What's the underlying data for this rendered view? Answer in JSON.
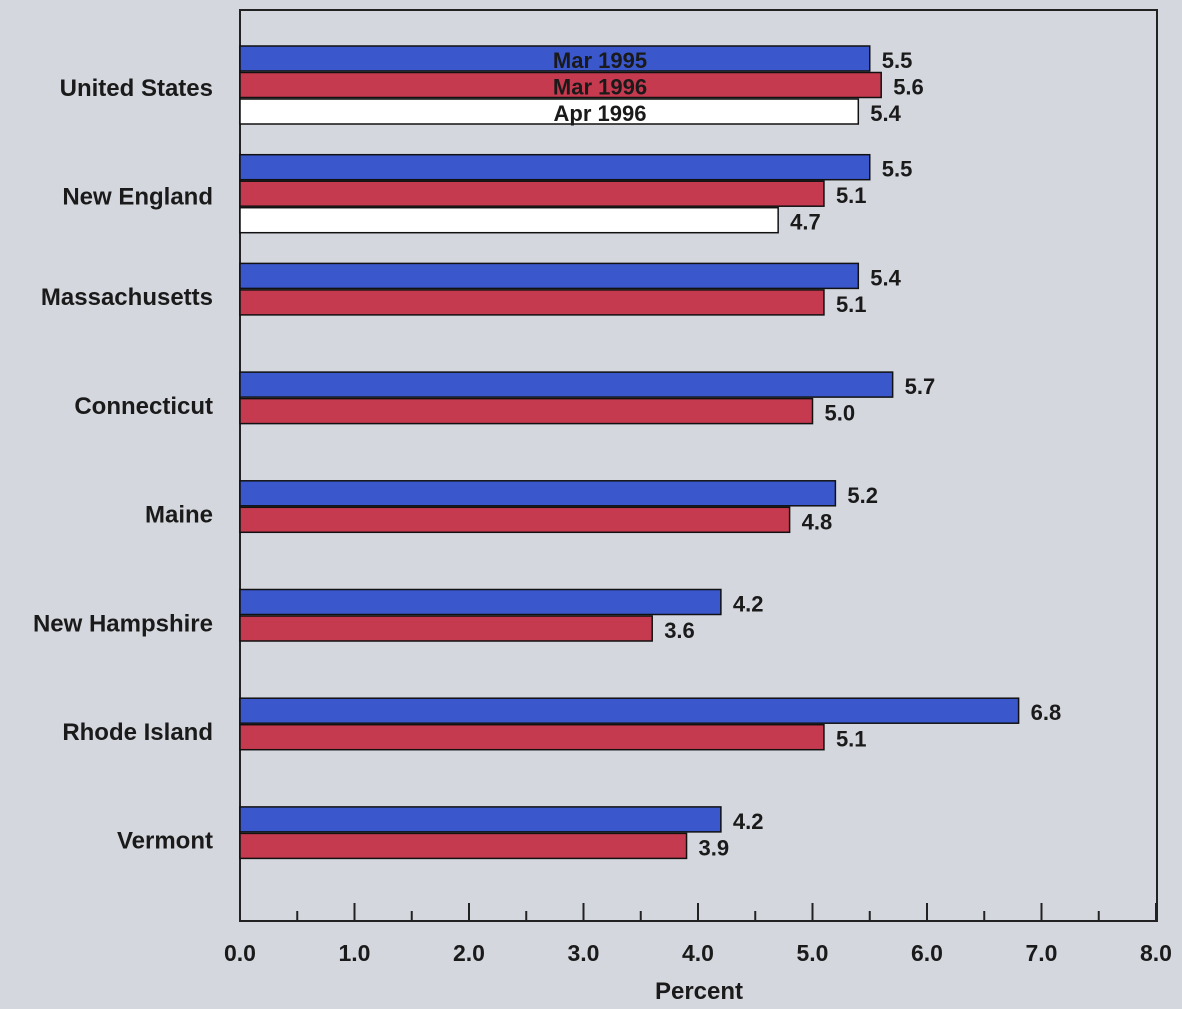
{
  "chart_data": {
    "type": "bar",
    "orientation": "horizontal",
    "categories": [
      "United States",
      "New England",
      "Massachusetts",
      "Connecticut",
      "Maine",
      "New Hampshire",
      "Rhode Island",
      "Vermont"
    ],
    "series": [
      {
        "name": "Mar 1995",
        "color": "#3a57cc",
        "values": [
          5.5,
          5.5,
          5.4,
          5.7,
          5.2,
          4.2,
          6.8,
          4.2
        ]
      },
      {
        "name": "Mar 1996",
        "color": "#c53a4f",
        "values": [
          5.6,
          5.1,
          5.1,
          5.0,
          4.8,
          3.6,
          5.1,
          3.9
        ]
      },
      {
        "name": "Apr 1996",
        "color": "#ffffff",
        "values": [
          5.4,
          4.7,
          null,
          null,
          null,
          null,
          null,
          null
        ]
      }
    ],
    "value_labels": [
      [
        "5.5",
        "5.5",
        "5.4",
        "5.7",
        "5.2",
        "4.2",
        "6.8",
        "4.2"
      ],
      [
        "5.6",
        "5.1",
        "5.1",
        "5.0",
        "4.8",
        "3.6",
        "5.1",
        "3.9"
      ],
      [
        "5.4",
        "4.7",
        null,
        null,
        null,
        null,
        null,
        null
      ]
    ],
    "xlim": [
      0,
      8
    ],
    "xticks": [
      0,
      1,
      2,
      3,
      4,
      5,
      6,
      7,
      8
    ],
    "xtick_labels": [
      "0.0",
      "1.0",
      "2.0",
      "3.0",
      "4.0",
      "5.0",
      "6.0",
      "7.0",
      "8.0"
    ],
    "xlabel": "Percent",
    "ylabel": "",
    "title": "",
    "legend_position": "inside, on the United States bars",
    "grid": false,
    "background_color": "#d4d7de"
  }
}
